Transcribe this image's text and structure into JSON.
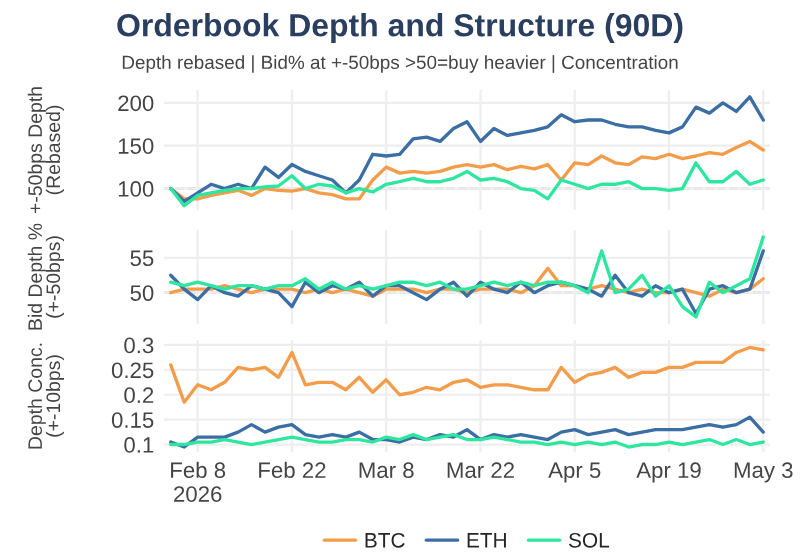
{
  "chart_data": [
    {
      "type": "line",
      "title": "Orderbook Depth and Structure (90D)",
      "subtitle": "Depth rebased | Bid% at +-50bps >50=buy heavier | Concentration",
      "ylabel": "+-50bps Depth\n(Rebased)",
      "x": [
        "2026-02-04",
        "2026-02-06",
        "2026-02-08",
        "2026-02-10",
        "2026-02-12",
        "2026-02-14",
        "2026-02-16",
        "2026-02-18",
        "2026-02-20",
        "2026-02-22",
        "2026-02-24",
        "2026-02-26",
        "2026-02-28",
        "2026-03-02",
        "2026-03-04",
        "2026-03-06",
        "2026-03-08",
        "2026-03-10",
        "2026-03-12",
        "2026-03-14",
        "2026-03-16",
        "2026-03-18",
        "2026-03-20",
        "2026-03-22",
        "2026-03-24",
        "2026-03-26",
        "2026-03-28",
        "2026-03-30",
        "2026-04-01",
        "2026-04-03",
        "2026-04-05",
        "2026-04-07",
        "2026-04-09",
        "2026-04-11",
        "2026-04-13",
        "2026-04-15",
        "2026-04-17",
        "2026-04-19",
        "2026-04-21",
        "2026-04-23",
        "2026-04-25",
        "2026-04-27",
        "2026-04-29",
        "2026-05-01",
        "2026-05-03"
      ],
      "series": [
        {
          "color": "#f39c4a",
          "values": [
            100,
            88,
            88,
            92,
            95,
            98,
            92,
            100,
            98,
            97,
            100,
            95,
            93,
            88,
            88,
            110,
            125,
            118,
            120,
            118,
            120,
            125,
            128,
            125,
            128,
            122,
            126,
            123,
            128,
            110,
            130,
            128,
            138,
            130,
            128,
            137,
            135,
            140,
            135,
            138,
            142,
            140,
            148,
            155,
            145
          ]
        },
        {
          "color": "#3b6ea5",
          "values": [
            100,
            85,
            95,
            105,
            100,
            105,
            100,
            125,
            113,
            128,
            120,
            115,
            110,
            95,
            110,
            140,
            138,
            140,
            158,
            160,
            155,
            170,
            178,
            155,
            170,
            162,
            165,
            168,
            172,
            186,
            178,
            180,
            180,
            175,
            172,
            172,
            168,
            165,
            172,
            195,
            188,
            200,
            190,
            207,
            180
          ]
        },
        {
          "color": "#2ee6a0",
          "values": [
            100,
            80,
            92,
            95,
            98,
            100,
            100,
            102,
            103,
            115,
            100,
            105,
            103,
            95,
            100,
            96,
            105,
            108,
            112,
            108,
            108,
            112,
            120,
            110,
            112,
            108,
            100,
            98,
            88,
            110,
            105,
            100,
            105,
            105,
            108,
            100,
            100,
            98,
            100,
            130,
            108,
            108,
            120,
            105,
            110
          ]
        }
      ],
      "xlim": [
        "2026-02-03",
        "2026-05-04"
      ],
      "ylim": [
        75,
        215
      ],
      "yticks": [
        100,
        150,
        200
      ],
      "tick_labels": "y",
      "grid": true,
      "ref_lines": [
        {
          "axis": "y",
          "value": 100,
          "color": "#bbbbbb",
          "line_style": "dashed"
        }
      ]
    },
    {
      "type": "line",
      "ylabel": "Bid Depth %\n(+-50bps)",
      "x": [
        "2026-02-04",
        "2026-02-06",
        "2026-02-08",
        "2026-02-10",
        "2026-02-12",
        "2026-02-14",
        "2026-02-16",
        "2026-02-18",
        "2026-02-20",
        "2026-02-22",
        "2026-02-24",
        "2026-02-26",
        "2026-02-28",
        "2026-03-02",
        "2026-03-04",
        "2026-03-06",
        "2026-03-08",
        "2026-03-10",
        "2026-03-12",
        "2026-03-14",
        "2026-03-16",
        "2026-03-18",
        "2026-03-20",
        "2026-03-22",
        "2026-03-24",
        "2026-03-26",
        "2026-03-28",
        "2026-03-30",
        "2026-04-01",
        "2026-04-03",
        "2026-04-05",
        "2026-04-07",
        "2026-04-09",
        "2026-04-11",
        "2026-04-13",
        "2026-04-15",
        "2026-04-17",
        "2026-04-19",
        "2026-04-21",
        "2026-04-23",
        "2026-04-25",
        "2026-04-27",
        "2026-04-29",
        "2026-05-01",
        "2026-05-03"
      ],
      "series": [
        {
          "color": "#f39c4a",
          "values": [
            50,
            50.5,
            50.5,
            50.5,
            51,
            50.5,
            50,
            50.5,
            50.5,
            50.5,
            50,
            50.5,
            50,
            50.5,
            50,
            49.5,
            50.5,
            50.5,
            50.5,
            50,
            50.5,
            50.5,
            50,
            50.5,
            50.5,
            50.5,
            50,
            51,
            53.5,
            51,
            51,
            50.5,
            51,
            50.5,
            50,
            50.5,
            50,
            50,
            50.5,
            50,
            49.5,
            50.5,
            50,
            50.5,
            52
          ]
        },
        {
          "color": "#3b6ea5",
          "values": [
            52.5,
            50.5,
            49,
            51,
            50,
            49.5,
            51,
            50.5,
            50,
            48,
            51.5,
            50,
            51,
            50.5,
            51.5,
            49.5,
            51,
            51,
            50,
            49,
            50.5,
            51.5,
            49.5,
            51.5,
            50.5,
            50,
            51.5,
            50,
            51,
            51.5,
            51,
            50.5,
            49.5,
            52.5,
            50,
            49.5,
            51,
            50,
            50.5,
            47,
            50.5,
            51,
            50,
            50.5,
            56
          ]
        },
        {
          "color": "#2ee6a0",
          "values": [
            51.5,
            51,
            51.5,
            51,
            50.5,
            51,
            51,
            50.5,
            51,
            51,
            52,
            50.5,
            51.5,
            50.5,
            51,
            50.5,
            51,
            51.5,
            51.5,
            51,
            51.5,
            50.5,
            50.5,
            51,
            51.5,
            51,
            51.5,
            51,
            51.5,
            51.5,
            51,
            50,
            56,
            50,
            50.5,
            52.5,
            49.5,
            51,
            48,
            46.5,
            51.5,
            50,
            51,
            52,
            58
          ]
        }
      ],
      "xlim": [
        "2026-02-03",
        "2026-05-04"
      ],
      "ylim": [
        45.5,
        59
      ],
      "yticks": [
        50,
        55
      ],
      "tick_labels": "y",
      "grid": true,
      "ref_lines": [
        {
          "axis": "y",
          "value": 50,
          "color": "#bbbbbb",
          "line_style": "dashed"
        }
      ]
    },
    {
      "type": "line",
      "ylabel": "Depth Conc.\n(+-10bps)",
      "x": [
        "2026-02-04",
        "2026-02-06",
        "2026-02-08",
        "2026-02-10",
        "2026-02-12",
        "2026-02-14",
        "2026-02-16",
        "2026-02-18",
        "2026-02-20",
        "2026-02-22",
        "2026-02-24",
        "2026-02-26",
        "2026-02-28",
        "2026-03-02",
        "2026-03-04",
        "2026-03-06",
        "2026-03-08",
        "2026-03-10",
        "2026-03-12",
        "2026-03-14",
        "2026-03-16",
        "2026-03-18",
        "2026-03-20",
        "2026-03-22",
        "2026-03-24",
        "2026-03-26",
        "2026-03-28",
        "2026-03-30",
        "2026-04-01",
        "2026-04-03",
        "2026-04-05",
        "2026-04-07",
        "2026-04-09",
        "2026-04-11",
        "2026-04-13",
        "2026-04-15",
        "2026-04-17",
        "2026-04-19",
        "2026-04-21",
        "2026-04-23",
        "2026-04-25",
        "2026-04-27",
        "2026-04-29",
        "2026-05-01",
        "2026-05-03"
      ],
      "series": [
        {
          "name": "BTC",
          "color": "#f39c4a",
          "values": [
            0.26,
            0.185,
            0.22,
            0.21,
            0.225,
            0.255,
            0.25,
            0.255,
            0.235,
            0.285,
            0.22,
            0.225,
            0.225,
            0.21,
            0.235,
            0.205,
            0.23,
            0.2,
            0.205,
            0.215,
            0.21,
            0.225,
            0.23,
            0.215,
            0.22,
            0.22,
            0.215,
            0.21,
            0.21,
            0.255,
            0.225,
            0.24,
            0.245,
            0.255,
            0.235,
            0.245,
            0.245,
            0.255,
            0.255,
            0.265,
            0.265,
            0.265,
            0.285,
            0.295,
            0.29
          ]
        },
        {
          "name": "ETH",
          "color": "#3b6ea5",
          "values": [
            0.105,
            0.095,
            0.115,
            0.115,
            0.115,
            0.125,
            0.14,
            0.125,
            0.135,
            0.14,
            0.12,
            0.115,
            0.12,
            0.115,
            0.125,
            0.11,
            0.11,
            0.105,
            0.115,
            0.11,
            0.12,
            0.115,
            0.13,
            0.11,
            0.12,
            0.115,
            0.12,
            0.115,
            0.11,
            0.125,
            0.13,
            0.12,
            0.125,
            0.13,
            0.12,
            0.125,
            0.13,
            0.13,
            0.13,
            0.135,
            0.14,
            0.135,
            0.14,
            0.155,
            0.125
          ]
        },
        {
          "name": "SOL",
          "color": "#2ee6a0",
          "values": [
            0.1,
            0.1,
            0.105,
            0.105,
            0.11,
            0.105,
            0.1,
            0.105,
            0.11,
            0.115,
            0.11,
            0.105,
            0.105,
            0.11,
            0.11,
            0.105,
            0.115,
            0.11,
            0.12,
            0.11,
            0.115,
            0.12,
            0.11,
            0.11,
            0.115,
            0.11,
            0.105,
            0.105,
            0.1,
            0.105,
            0.1,
            0.105,
            0.1,
            0.105,
            0.095,
            0.1,
            0.1,
            0.105,
            0.1,
            0.105,
            0.11,
            0.1,
            0.11,
            0.1,
            0.105
          ]
        }
      ],
      "xlim": [
        "2026-02-03",
        "2026-05-04"
      ],
      "ylim": [
        0.085,
        0.31
      ],
      "yticks": [
        0.1,
        0.15,
        0.2,
        0.25,
        0.3
      ],
      "xticks": [
        {
          "value": "2026-02-08",
          "label": "Feb 8\n2026"
        },
        {
          "value": "2026-02-22",
          "label": "Feb 22"
        },
        {
          "value": "2026-03-08",
          "label": "Mar 8"
        },
        {
          "value": "2026-03-22",
          "label": "Mar 22"
        },
        {
          "value": "2026-04-05",
          "label": "Apr 5"
        },
        {
          "value": "2026-04-19",
          "label": "Apr 19"
        },
        {
          "value": "2026-05-03",
          "label": "May 3"
        }
      ],
      "grid": true,
      "legend": "bottom"
    }
  ]
}
